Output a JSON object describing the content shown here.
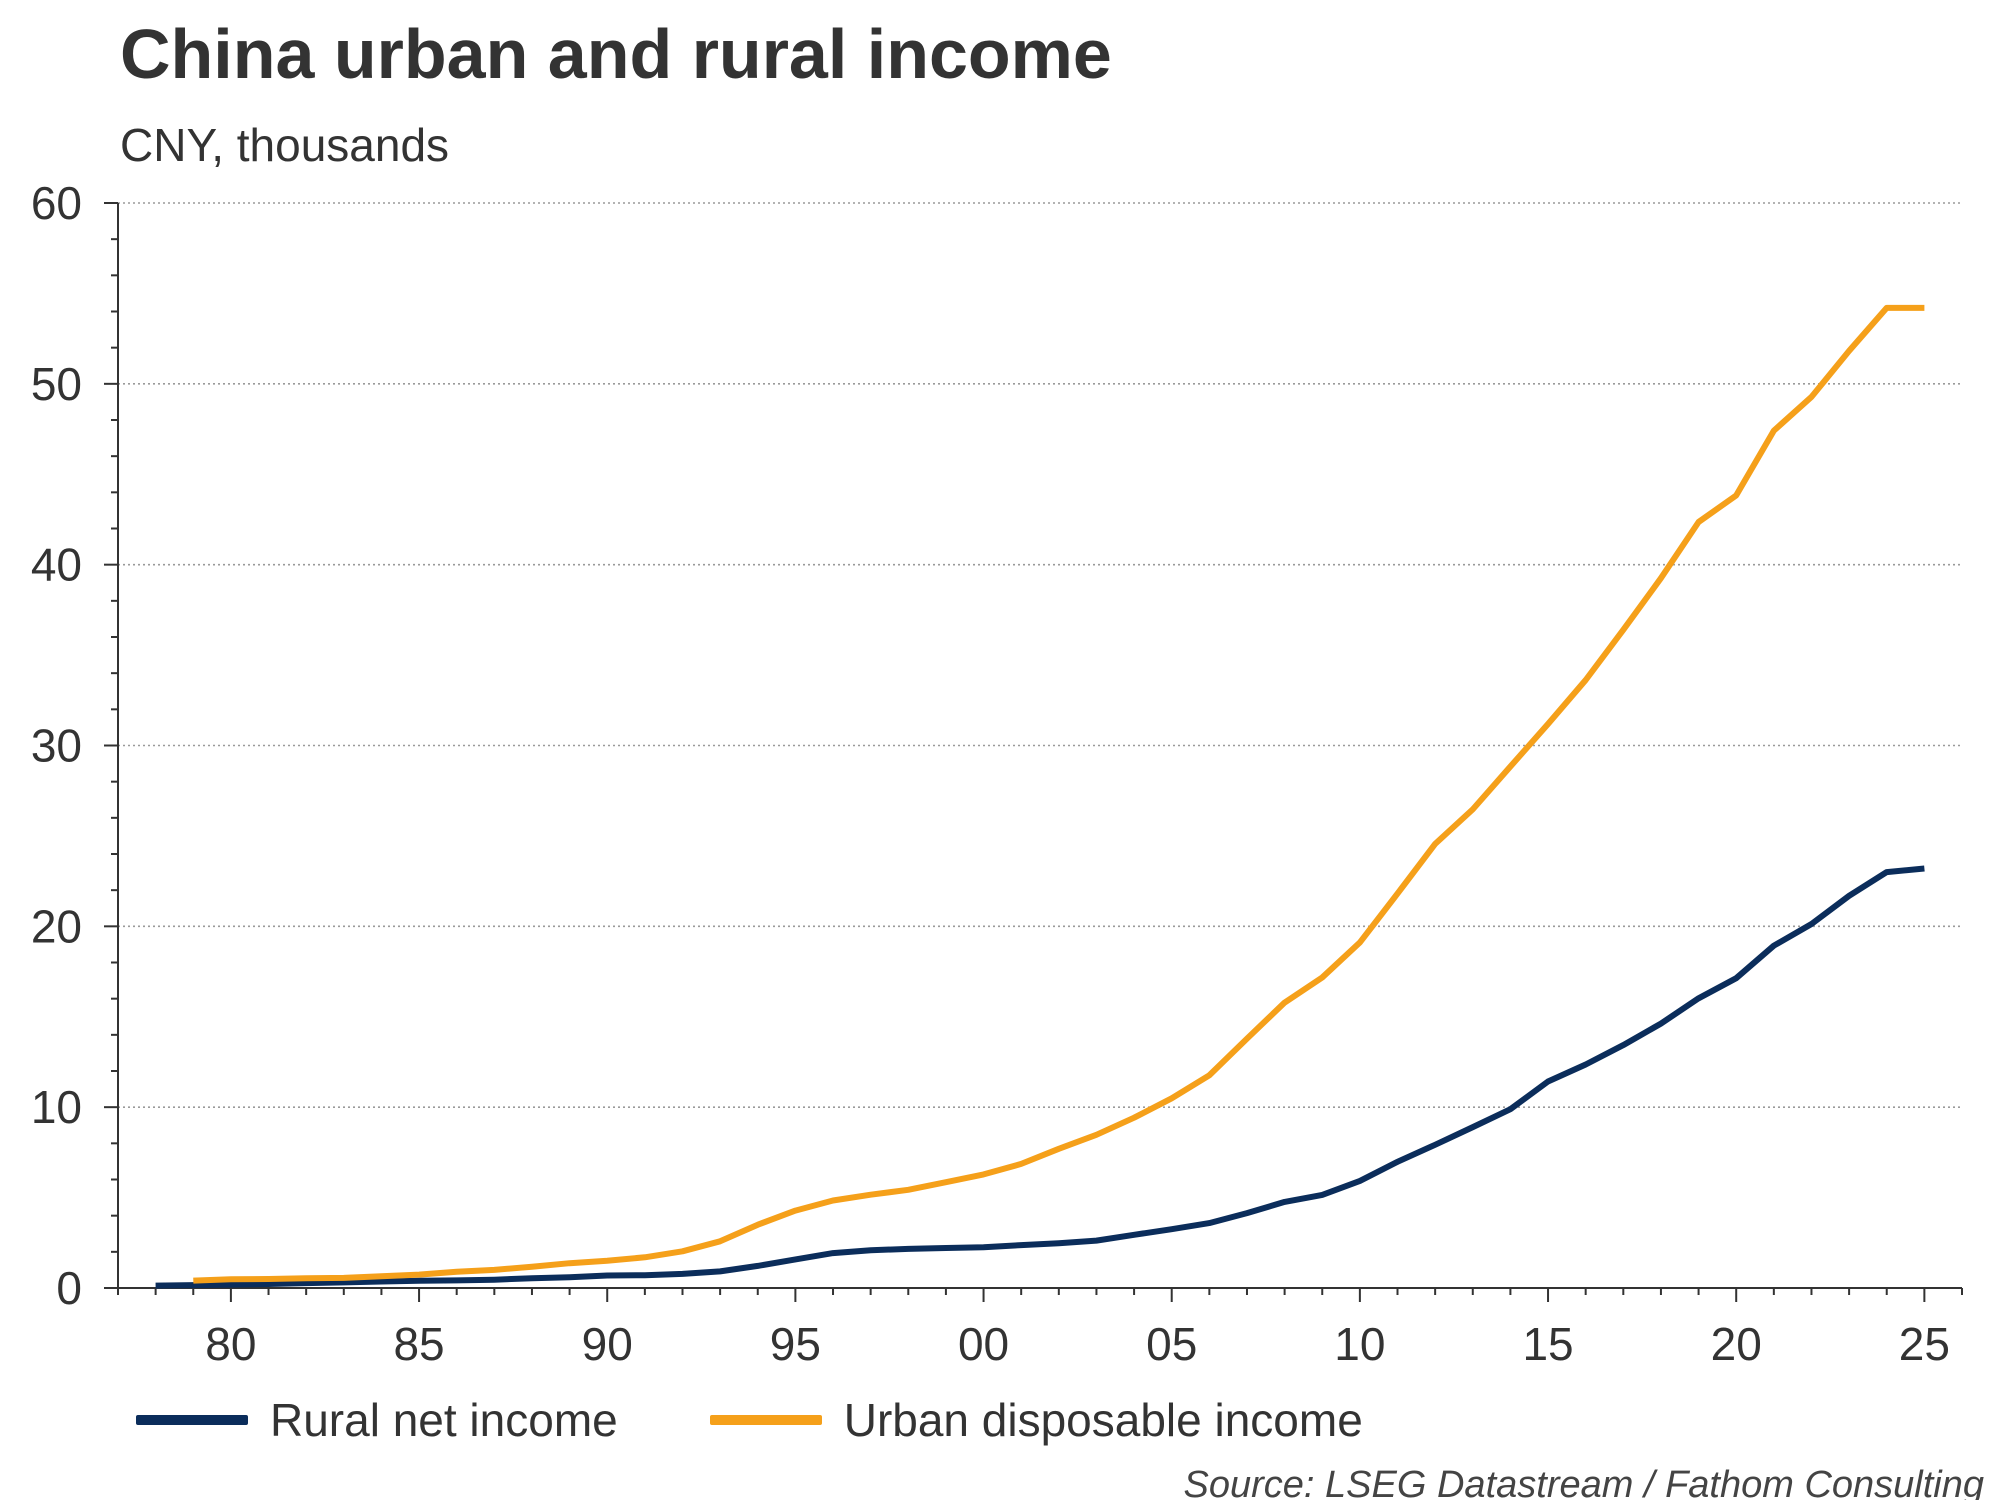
{
  "chart_data": {
    "type": "line",
    "title": "China urban and rural income",
    "subtitle": "CNY, thousands",
    "source": "Source: LSEG Datastream / Fathom Consulting",
    "ylabel": "CNY, thousands",
    "xlabel": "",
    "ylim": [
      0,
      60
    ],
    "xlim": [
      1977,
      2026
    ],
    "grid": true,
    "legend_position": "bottom",
    "y_ticks": [
      0,
      10,
      20,
      30,
      40,
      50,
      60
    ],
    "y_tick_labels": [
      "0",
      "10",
      "20",
      "30",
      "40",
      "50",
      "60"
    ],
    "x_ticks": [
      1980,
      1985,
      1990,
      1995,
      2000,
      2005,
      2010,
      2015,
      2020,
      2025
    ],
    "x_tick_labels": [
      "80",
      "85",
      "90",
      "95",
      "00",
      "05",
      "10",
      "15",
      "20",
      "25"
    ],
    "series": [
      {
        "name": "Rural net income",
        "color": "#0b2d5b",
        "x": [
          1978,
          1979,
          1980,
          1981,
          1982,
          1983,
          1984,
          1985,
          1986,
          1987,
          1988,
          1989,
          1990,
          1991,
          1992,
          1993,
          1994,
          1995,
          1996,
          1997,
          1998,
          1999,
          2000,
          2001,
          2002,
          2003,
          2004,
          2005,
          2006,
          2007,
          2008,
          2009,
          2010,
          2011,
          2012,
          2013,
          2014,
          2015,
          2016,
          2017,
          2018,
          2019,
          2020,
          2021,
          2022,
          2023,
          2024,
          2025
        ],
        "values": [
          0.13,
          0.16,
          0.19,
          0.22,
          0.27,
          0.31,
          0.36,
          0.4,
          0.42,
          0.46,
          0.54,
          0.6,
          0.69,
          0.71,
          0.78,
          0.92,
          1.22,
          1.58,
          1.93,
          2.09,
          2.16,
          2.21,
          2.25,
          2.37,
          2.48,
          2.62,
          2.94,
          3.25,
          3.59,
          4.14,
          4.76,
          5.15,
          5.92,
          6.98,
          7.92,
          8.9,
          9.89,
          11.42,
          12.36,
          13.43,
          14.62,
          16.02,
          17.13,
          18.93,
          20.13,
          21.69,
          23.0,
          23.2
        ]
      },
      {
        "name": "Urban disposable income",
        "color": "#f5a01a",
        "x": [
          1979,
          1980,
          1981,
          1982,
          1983,
          1984,
          1985,
          1986,
          1987,
          1988,
          1989,
          1990,
          1991,
          1992,
          1993,
          1994,
          1995,
          1996,
          1997,
          1998,
          1999,
          2000,
          2001,
          2002,
          2003,
          2004,
          2005,
          2006,
          2007,
          2008,
          2009,
          2010,
          2011,
          2012,
          2013,
          2014,
          2015,
          2016,
          2017,
          2018,
          2019,
          2020,
          2021,
          2022,
          2023,
          2024,
          2025
        ],
        "values": [
          0.41,
          0.48,
          0.5,
          0.54,
          0.56,
          0.65,
          0.74,
          0.9,
          1.0,
          1.18,
          1.37,
          1.51,
          1.7,
          2.03,
          2.58,
          3.5,
          4.28,
          4.84,
          5.16,
          5.43,
          5.85,
          6.28,
          6.86,
          7.7,
          8.47,
          9.42,
          10.49,
          11.76,
          13.79,
          15.78,
          17.17,
          19.11,
          21.81,
          24.56,
          26.47,
          28.84,
          31.19,
          33.62,
          36.4,
          39.25,
          42.36,
          43.83,
          47.41,
          49.28,
          51.82,
          54.2,
          54.2
        ]
      }
    ]
  }
}
